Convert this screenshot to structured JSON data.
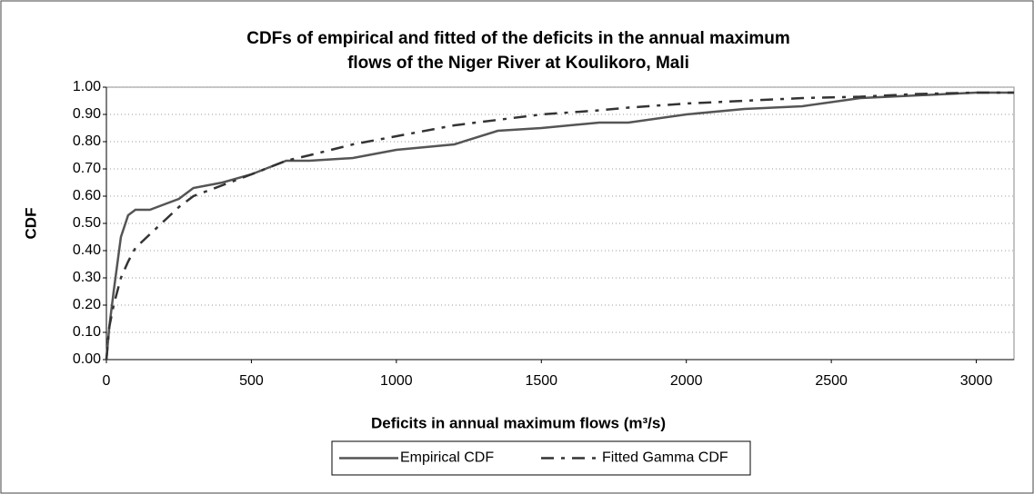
{
  "chart_data": {
    "type": "line",
    "title": [
      "CDFs of empirical and fitted  of the deficits in the annual maximum",
      "flows of the Niger River at Koulikoro, Mali"
    ],
    "x_label": "Deficits in annual maximum flows (m³/s)",
    "y_label": "CDF",
    "x": [
      0,
      10,
      25,
      50,
      75,
      100,
      150,
      200,
      250,
      300,
      400,
      500,
      620,
      700,
      850,
      1000,
      1200,
      1350,
      1500,
      1700,
      1800,
      2000,
      2200,
      2400,
      2600,
      2800,
      3000,
      3130
    ],
    "series": [
      {
        "name": "Empirical CDF",
        "color": "#555555",
        "line_style": "solid",
        "values": [
          0,
          0.12,
          0.25,
          0.45,
          0.53,
          0.55,
          0.55,
          0.57,
          0.59,
          0.63,
          0.65,
          0.68,
          0.73,
          0.73,
          0.74,
          0.77,
          0.79,
          0.84,
          0.85,
          0.87,
          0.87,
          0.9,
          0.92,
          0.93,
          0.96,
          0.97,
          0.98,
          0.98
        ]
      },
      {
        "name": "Fitted Gamma CDF",
        "color": "#333333",
        "line_style": "dashed",
        "values": [
          0,
          0.12,
          0.2,
          0.3,
          0.36,
          0.41,
          0.46,
          0.51,
          0.56,
          0.6,
          0.64,
          0.68,
          0.73,
          0.75,
          0.79,
          0.82,
          0.86,
          0.88,
          0.9,
          0.915,
          0.925,
          0.94,
          0.95,
          0.96,
          0.965,
          0.975,
          0.98,
          0.98
        ]
      }
    ],
    "xlim": [
      0,
      3130
    ],
    "xticks": [
      0,
      500,
      1000,
      1500,
      2000,
      2500,
      3000
    ],
    "ylim": [
      0,
      1
    ],
    "yticks": [
      {
        "value": 0,
        "label": "0.00"
      },
      {
        "value": 0.1,
        "label": "0.10"
      },
      {
        "value": 0.2,
        "label": "0.20"
      },
      {
        "value": 0.3,
        "label": "0.30"
      },
      {
        "value": 0.4,
        "label": "0.40"
      },
      {
        "value": 0.5,
        "label": "0.50"
      },
      {
        "value": 0.6,
        "label": "0.60"
      },
      {
        "value": 0.7,
        "label": "0.70"
      },
      {
        "value": 0.8,
        "label": "0.80"
      },
      {
        "value": 0.9,
        "label": "0.90"
      },
      {
        "value": 1,
        "label": "1.00"
      }
    ],
    "grid": true,
    "legend": "bottom"
  }
}
